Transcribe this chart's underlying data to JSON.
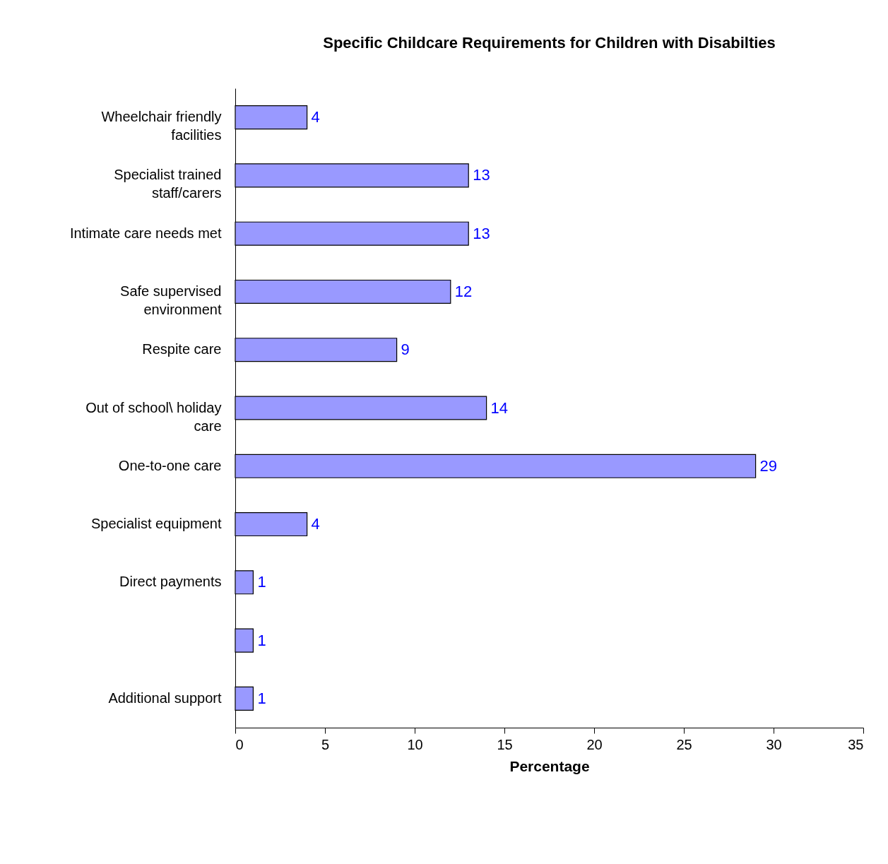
{
  "chart_data": {
    "type": "bar",
    "orientation": "horizontal",
    "title": "Specific Childcare Requirements for Children with Disabilties",
    "xlabel": "Percentage",
    "categories": [
      "Wheelchair friendly\nfacilities",
      "Specialist trained\nstaff/carers",
      "Intimate care needs met",
      "Safe supervised\nenvironment",
      "Respite care",
      "Out of school\\ holiday\ncare",
      "One-to-one care",
      "Specialist equipment",
      "Direct payments",
      null,
      "Additional support"
    ],
    "values": [
      4,
      13,
      13,
      12,
      9,
      14,
      29,
      4,
      1,
      1,
      1
    ],
    "color": "#9999ff",
    "xlim": [
      0,
      35
    ],
    "xticks": [
      0,
      5,
      10,
      15,
      20,
      25,
      30,
      35
    ],
    "grid": false,
    "data_labels": true
  }
}
